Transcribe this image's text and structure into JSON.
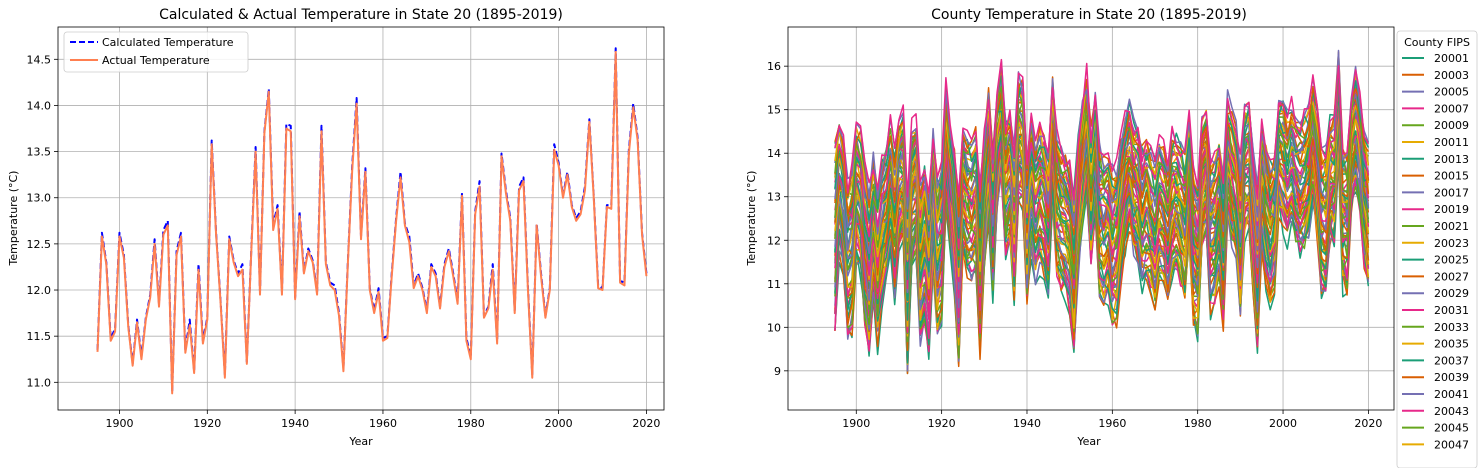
{
  "chart_data": [
    {
      "type": "line",
      "title": "Calculated & Actual Temperature in State 20 (1895-2019)",
      "xlabel": "Year",
      "ylabel": "Temperature (°C)",
      "xlim": [
        1886,
        2024
      ],
      "ylim": [
        10.7,
        14.85
      ],
      "xticks": [
        1900,
        1920,
        1940,
        1960,
        1980,
        2000,
        2020
      ],
      "yticks": [
        11.0,
        11.5,
        12.0,
        12.5,
        13.0,
        13.5,
        14.0,
        14.5
      ],
      "grid": true,
      "legend_position": "upper-left",
      "x_start": 1895,
      "series": [
        {
          "name": "Calculated Temperature",
          "color": "#0000ff",
          "style": "dashed",
          "values": [
            11.35,
            12.62,
            12.3,
            11.48,
            11.58,
            12.62,
            12.38,
            11.62,
            11.2,
            11.68,
            11.28,
            11.7,
            11.95,
            12.55,
            11.85,
            12.65,
            12.75,
            10.9,
            12.42,
            12.62,
            11.35,
            11.68,
            11.12,
            12.28,
            11.45,
            11.7,
            13.62,
            12.62,
            11.9,
            11.08,
            12.58,
            12.32,
            12.18,
            12.28,
            11.22,
            12.42,
            13.55,
            11.98,
            13.72,
            14.18,
            12.7,
            12.92,
            11.98,
            13.8,
            13.78,
            11.92,
            12.85,
            12.2,
            12.45,
            12.32,
            11.98,
            13.78,
            12.3,
            12.08,
            12.05,
            11.75,
            11.15,
            12.3,
            13.35,
            14.08,
            12.58,
            13.32,
            12.02,
            11.78,
            12.02,
            11.48,
            11.5,
            12.18,
            12.78,
            13.28,
            12.72,
            12.58,
            12.05,
            12.18,
            12.02,
            11.78,
            12.28,
            12.18,
            11.82,
            12.28,
            12.45,
            12.18,
            11.88,
            13.05,
            11.48,
            11.28,
            12.85,
            13.18,
            11.72,
            11.82,
            12.28,
            11.45,
            13.48,
            13.08,
            12.78,
            11.78,
            13.12,
            13.22,
            12.05,
            11.08,
            12.72,
            12.18,
            11.72,
            12.02,
            13.58,
            13.38,
            13.02,
            13.28,
            12.92,
            12.78,
            12.85,
            13.12,
            13.85,
            13.02,
            12.05,
            12.02,
            12.92,
            12.92,
            14.62,
            12.1,
            12.08,
            13.52,
            14.02,
            13.65,
            12.62,
            12.18
          ]
        },
        {
          "name": "Actual Temperature",
          "color": "#ff7f50",
          "style": "solid",
          "values": [
            11.33,
            12.58,
            12.28,
            11.45,
            11.55,
            12.58,
            12.35,
            11.6,
            11.18,
            11.65,
            11.25,
            11.68,
            11.92,
            12.5,
            11.82,
            12.6,
            12.7,
            10.88,
            12.38,
            12.58,
            11.32,
            11.62,
            11.1,
            12.22,
            11.42,
            11.68,
            13.58,
            12.6,
            11.88,
            11.05,
            12.55,
            12.3,
            12.15,
            12.22,
            11.2,
            12.4,
            13.5,
            11.95,
            13.7,
            14.15,
            12.65,
            12.88,
            11.95,
            13.75,
            13.72,
            11.9,
            12.8,
            12.18,
            12.42,
            12.3,
            11.95,
            13.72,
            12.28,
            12.05,
            12.0,
            11.72,
            11.12,
            12.28,
            13.3,
            14.02,
            12.55,
            13.28,
            12.0,
            11.75,
            11.98,
            11.45,
            11.48,
            12.15,
            12.75,
            13.22,
            12.7,
            12.52,
            12.02,
            12.15,
            12.0,
            11.75,
            12.25,
            12.15,
            11.8,
            12.25,
            12.42,
            12.15,
            11.85,
            13.02,
            11.45,
            11.25,
            12.82,
            13.12,
            11.7,
            11.8,
            12.22,
            11.42,
            13.45,
            13.05,
            12.75,
            11.75,
            13.08,
            13.18,
            12.02,
            11.05,
            12.7,
            12.15,
            11.7,
            12.0,
            13.52,
            13.35,
            13.0,
            13.25,
            12.9,
            12.75,
            12.82,
            13.08,
            13.82,
            13.0,
            12.02,
            12.0,
            12.9,
            12.88,
            14.58,
            12.08,
            12.05,
            13.48,
            13.98,
            13.62,
            12.6,
            12.15
          ]
        }
      ]
    },
    {
      "type": "line",
      "title": "County Temperature in State 20 (1895-2019)",
      "xlabel": "Year",
      "ylabel": "Temperature (°C)",
      "xlim": [
        1884,
        2026
      ],
      "ylim": [
        8.1,
        16.9
      ],
      "xticks": [
        1900,
        1920,
        1940,
        1960,
        1980,
        2000,
        2020
      ],
      "yticks": [
        9,
        10,
        11,
        12,
        13,
        14,
        15,
        16
      ],
      "grid": true,
      "legend_title": "County FIPS",
      "legend_position": "outside-right",
      "x_start": 1895,
      "base_series": [
        12.0,
        13.2,
        12.8,
        11.6,
        11.8,
        13.1,
        12.9,
        11.9,
        11.3,
        12.2,
        11.4,
        12.2,
        12.6,
        13.2,
        12.4,
        13.3,
        13.4,
        10.9,
        13.0,
        13.3,
        11.4,
        11.9,
        11.2,
        12.9,
        11.6,
        11.9,
        14.1,
        13.2,
        12.4,
        11.1,
        13.1,
        12.8,
        12.7,
        12.9,
        11.3,
        12.9,
        14.0,
        12.4,
        14.2,
        14.7,
        13.2,
        13.5,
        12.4,
        14.3,
        14.2,
        12.3,
        13.3,
        12.7,
        13.0,
        12.8,
        12.3,
        14.3,
        12.8,
        12.5,
        12.4,
        12.1,
        11.3,
        12.8,
        13.8,
        14.5,
        13.0,
        13.8,
        12.4,
        12.2,
        12.4,
        11.8,
        11.9,
        12.7,
        13.3,
        13.7,
        13.2,
        13.1,
        12.5,
        12.7,
        12.5,
        12.2,
        12.8,
        12.6,
        12.2,
        12.8,
        12.9,
        12.6,
        12.3,
        13.4,
        11.8,
        11.6,
        13.3,
        13.6,
        12.1,
        12.2,
        12.7,
        11.8,
        13.9,
        13.4,
        13.1,
        12.1,
        13.6,
        13.7,
        12.5,
        11.4,
        13.2,
        12.6,
        12.1,
        12.4,
        14.0,
        13.8,
        13.4,
        13.7,
        13.4,
        13.2,
        13.3,
        13.6,
        14.3,
        13.5,
        12.5,
        12.4,
        13.4,
        13.4,
        15.0,
        12.5,
        12.4,
        14.0,
        14.5,
        14.0,
        13.0,
        12.5
      ],
      "spread_values": [
        2.4,
        1.6,
        1.7,
        1.9,
        2.0,
        1.6,
        1.7,
        1.9,
        2.0,
        1.8,
        1.9,
        1.8,
        1.7,
        1.6,
        1.8,
        1.6,
        1.6,
        2.1,
        1.7,
        1.6,
        1.9,
        1.9,
        2.0,
        1.7,
        1.9,
        1.9,
        1.5,
        1.6,
        1.8,
        2.0,
        1.6,
        1.7,
        1.7,
        1.7,
        2.0,
        1.7,
        1.5,
        1.8,
        1.5,
        1.4,
        1.6,
        1.6,
        1.8,
        1.5,
        1.5,
        1.8,
        1.6,
        1.7,
        1.7,
        1.7,
        1.8,
        1.5,
        1.7,
        1.7,
        1.7,
        1.8,
        2.0,
        1.7,
        1.5,
        1.4,
        1.6,
        1.5,
        1.8,
        1.8,
        1.8,
        1.9,
        1.9,
        1.7,
        1.6,
        1.5,
        1.6,
        1.6,
        1.7,
        1.7,
        1.7,
        1.8,
        1.7,
        1.7,
        1.8,
        1.7,
        1.6,
        1.7,
        1.8,
        1.5,
        1.9,
        1.9,
        1.6,
        1.5,
        1.8,
        1.8,
        1.7,
        1.9,
        1.5,
        1.6,
        1.6,
        1.8,
        1.5,
        1.5,
        1.7,
        1.9,
        1.6,
        1.7,
        1.8,
        1.7,
        1.4,
        1.5,
        1.5,
        1.5,
        1.5,
        1.6,
        1.6,
        1.5,
        1.4,
        1.5,
        1.7,
        1.7,
        1.5,
        1.5,
        1.3,
        1.7,
        1.7,
        1.4,
        1.4,
        1.4,
        1.6,
        1.7
      ],
      "palette": [
        "#1b9e77",
        "#d95f02",
        "#7570b3",
        "#e7298a",
        "#66a61e",
        "#e6ab02"
      ],
      "counties": [
        "20001",
        "20003",
        "20005",
        "20007",
        "20009",
        "20011",
        "20013",
        "20015",
        "20017",
        "20019",
        "20021",
        "20023",
        "20025",
        "20027",
        "20029",
        "20031",
        "20033",
        "20035",
        "20037",
        "20039",
        "20041",
        "20043",
        "20045",
        "20047"
      ]
    }
  ]
}
